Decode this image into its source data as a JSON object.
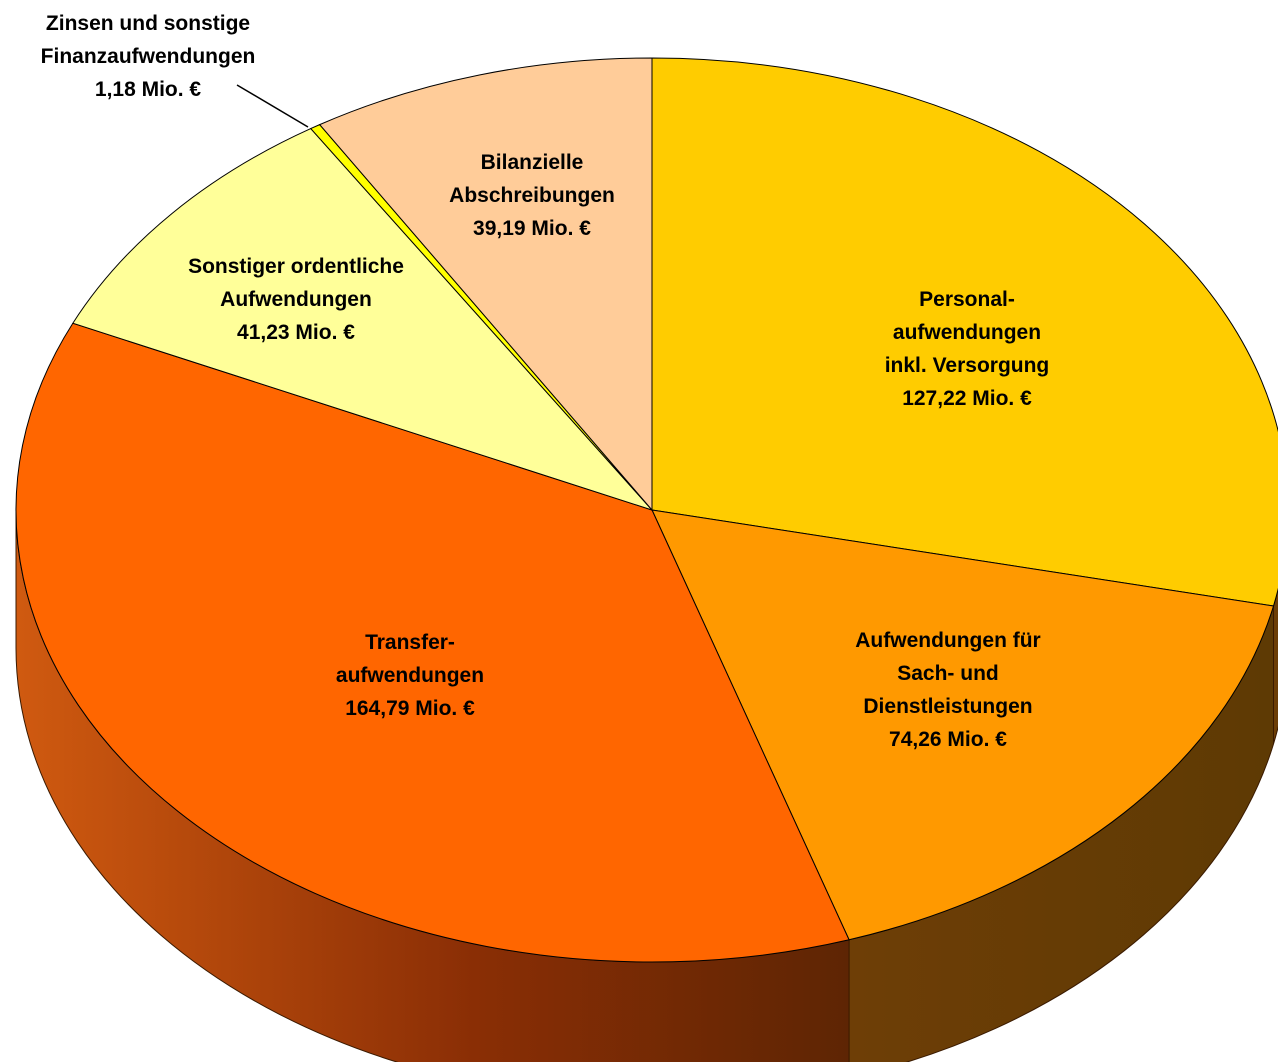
{
  "chart_data": {
    "type": "pie",
    "style": "3d",
    "unit": "Mio. €",
    "slices": [
      {
        "lines": [
          "Personal-",
          "aufwendungen",
          "inkl. Versorgung",
          "127,22 Mio. €"
        ],
        "value": 127.22,
        "color": "#FFCC00"
      },
      {
        "lines": [
          "Aufwendungen für",
          "Sach- und",
          "Dienstleistungen",
          "74,26 Mio. €"
        ],
        "value": 74.26,
        "color": "#FF9900"
      },
      {
        "lines": [
          "Transfer-",
          "aufwendungen",
          "164,79 Mio. €"
        ],
        "value": 164.79,
        "color": "#FF6600"
      },
      {
        "lines": [
          "Sonstiger ordentliche",
          "Aufwendungen",
          "41,23 Mio. €"
        ],
        "value": 41.23,
        "color": "#FFFF99"
      },
      {
        "lines": [
          "Zinsen und sonstige",
          "Finanzaufwendungen",
          "1,18 Mio. €"
        ],
        "value": 1.18,
        "color": "#FFFF00"
      },
      {
        "lines": [
          "Bilanzielle",
          "Abschreibungen",
          "39,19 Mio. €"
        ],
        "value": 39.19,
        "color": "#FFCC99"
      }
    ]
  }
}
